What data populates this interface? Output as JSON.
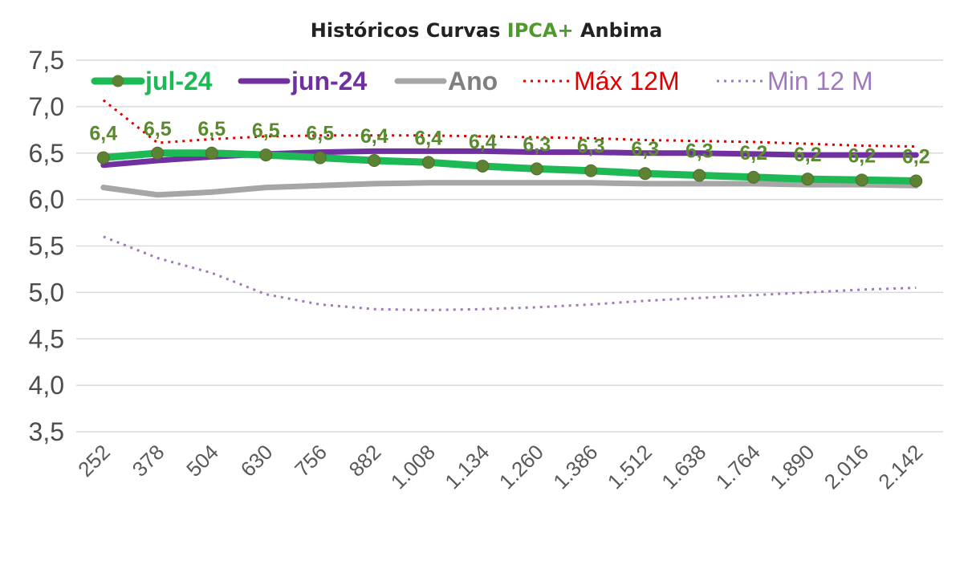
{
  "chart_data": {
    "type": "line",
    "title": {
      "parts": [
        {
          "text": "Históricos Curvas ",
          "color": "#222222"
        },
        {
          "text": "IPCA+",
          "color": "#4e9a2a"
        },
        {
          "text": " Anbima",
          "color": "#222222"
        }
      ]
    },
    "xlabel": "",
    "ylabel": "",
    "ylim": [
      3.5,
      7.5
    ],
    "yticks": [
      "3,5",
      "4,0",
      "4,5",
      "5,0",
      "5,5",
      "6,0",
      "6,5",
      "7,0",
      "7,5"
    ],
    "categories": [
      "252",
      "378",
      "504",
      "630",
      "756",
      "882",
      "1.008",
      "1.134",
      "1.260",
      "1.386",
      "1.512",
      "1.638",
      "1.764",
      "1.890",
      "2.016",
      "2.142"
    ],
    "grid": true,
    "legend_position": "top",
    "series": [
      {
        "name": "jul-24",
        "color": "#1db954",
        "style": "solid-thick-markers",
        "values": [
          6.45,
          6.5,
          6.5,
          6.48,
          6.45,
          6.42,
          6.4,
          6.36,
          6.33,
          6.31,
          6.28,
          6.26,
          6.24,
          6.22,
          6.21,
          6.2
        ],
        "data_labels": [
          "6,4",
          "6,5",
          "6,5",
          "6,5",
          "6,5",
          "6,4",
          "6,4",
          "6,4",
          "6,3",
          "6,3",
          "6,3",
          "6,3",
          "6,2",
          "6,2",
          "6,2",
          "6,2"
        ]
      },
      {
        "name": "jun-24",
        "color": "#7030a0",
        "style": "solid",
        "values": [
          6.37,
          6.42,
          6.46,
          6.49,
          6.51,
          6.52,
          6.52,
          6.52,
          6.51,
          6.51,
          6.5,
          6.5,
          6.49,
          6.48,
          6.48,
          6.48
        ]
      },
      {
        "name": "Ano",
        "color": "#a6a6a6",
        "style": "solid",
        "values": [
          6.13,
          6.05,
          6.08,
          6.13,
          6.15,
          6.17,
          6.18,
          6.18,
          6.18,
          6.18,
          6.17,
          6.17,
          6.17,
          6.16,
          6.16,
          6.15
        ]
      },
      {
        "name": "Máx 12M",
        "color": "#e00000",
        "style": "dotted",
        "values": [
          7.07,
          6.61,
          6.65,
          6.68,
          6.69,
          6.69,
          6.69,
          6.68,
          6.67,
          6.66,
          6.64,
          6.63,
          6.62,
          6.6,
          6.58,
          6.57
        ]
      },
      {
        "name": "Min 12 M",
        "color": "#a07ab8",
        "style": "dotted",
        "values": [
          5.6,
          5.37,
          5.21,
          4.98,
          4.87,
          4.82,
          4.81,
          4.82,
          4.84,
          4.87,
          4.91,
          4.94,
          4.97,
          5.0,
          5.03,
          5.05
        ]
      }
    ]
  }
}
